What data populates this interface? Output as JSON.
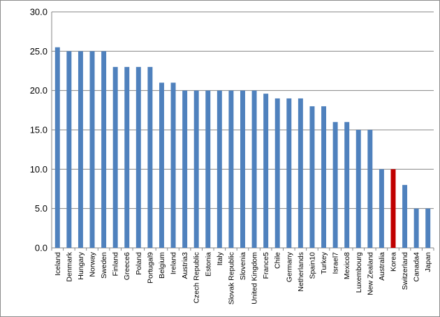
{
  "chart_data": {
    "type": "bar",
    "title": "",
    "xlabel": "",
    "ylabel": "",
    "ylim": [
      0,
      30
    ],
    "yticks": [
      "0.0",
      "5.0",
      "10.0",
      "15.0",
      "20.0",
      "25.0",
      "30.0"
    ],
    "grid": true,
    "legend": "none",
    "categories": [
      "Iceland",
      "Denmark",
      "Hungary",
      "Norway",
      "Sweden",
      "Finland",
      "Greece6",
      "Poland",
      "Portugal9",
      "Belgium",
      "Ireland",
      "Austria3",
      "Czech Republic",
      "Estonia",
      "Italy",
      "Slovak Republic",
      "Slovenia",
      "United Kingdom",
      "France5",
      "Chile",
      "Germany",
      "Netherlands",
      "Spain10",
      "Turkey",
      "Israel7",
      "Mexico8",
      "Luxembourg",
      "New Zealand",
      "Australia",
      "Korea",
      "Switzerland",
      "Canada4",
      "Japan"
    ],
    "values": [
      25.5,
      25,
      25,
      25,
      25,
      23,
      23,
      23,
      23,
      21,
      21,
      20,
      20,
      20,
      20,
      20,
      20,
      20,
      19.6,
      19,
      19,
      19,
      18,
      18,
      16,
      16,
      15,
      15,
      10,
      10,
      8,
      5,
      5
    ],
    "colors": {
      "bar": "#4f81bd",
      "highlight": "#c00000",
      "grid": "#868686",
      "axis": "#868686"
    },
    "highlight_category": "Korea"
  }
}
